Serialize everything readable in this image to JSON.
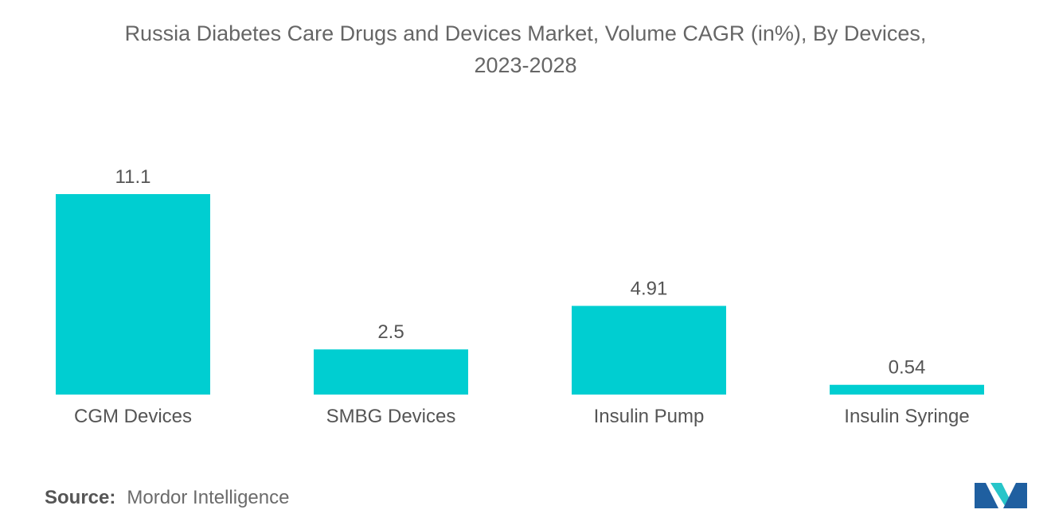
{
  "chart_data": {
    "type": "bar",
    "title": "Russia Diabetes Care Drugs and Devices Market, Volume CAGR (in%), By Devices, 2023-2028",
    "title_lines": [
      "Russia Diabetes Care Drugs and Devices Market, Volume CAGR (in%), By Devices,",
      "2023-2028"
    ],
    "categories": [
      "CGM Devices",
      "SMBG Devices",
      "Insulin Pump",
      "Insulin Syringe"
    ],
    "values": [
      11.1,
      2.5,
      4.91,
      0.54
    ],
    "value_labels": [
      "11.1",
      "2.5",
      "4.91",
      "0.54"
    ],
    "xlabel": "",
    "ylabel": "",
    "ylim": [
      0,
      11.1
    ],
    "grid": false,
    "legend": "none"
  },
  "colors": {
    "bar": "#00CED1",
    "text": "#555555",
    "title": "#666666",
    "logo_dark": "#1f5fa0",
    "logo_light": "#27c5c9"
  },
  "source": {
    "label": "Source:",
    "text": "Mordor Intelligence"
  },
  "logo": {
    "icon": "mordor-intelligence-logo-icon"
  }
}
